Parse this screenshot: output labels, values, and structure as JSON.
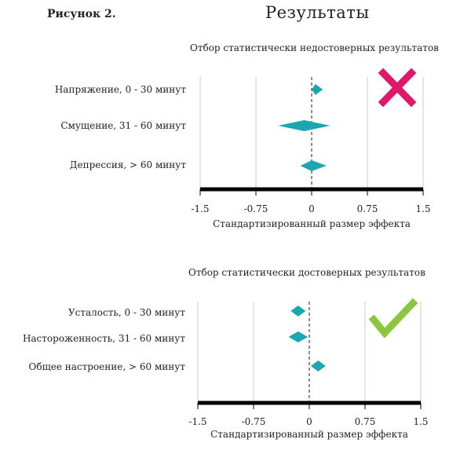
{
  "figure_label": "Рисунок 2.",
  "title": "Результаты",
  "colors": {
    "marker": "#1aa7b0",
    "axis": "#000000",
    "grid": "#cccccc",
    "cross": "#e0186c",
    "check": "#8cc63f"
  },
  "chart_data": [
    {
      "type": "forest",
      "subtitle": "Отбор статистически недостоверных результатов",
      "categories": [
        "Напряжение, 0 - 30 минут",
        "Смущение, 31 - 60 минут",
        "Депрессия, > 60 минут"
      ],
      "series": [
        {
          "estimates": [
            0.05,
            -0.1,
            0.0
          ],
          "ci_low": [
            -0.0,
            -0.45,
            -0.15
          ],
          "ci_high": [
            0.15,
            0.25,
            0.2
          ]
        }
      ],
      "xlim": [
        -1.5,
        1.5
      ],
      "xticks": [
        "-1.5",
        "-0.75",
        "0",
        "0.75",
        "1.5"
      ],
      "xlabel": "Стандартизированный размер эффекта",
      "badge": "cross-icon"
    },
    {
      "type": "forest",
      "subtitle": "Отбор статистически достоверных результатов",
      "categories": [
        "Усталость, 0 - 30 минут",
        "Настороженность, 31 - 60 минут",
        "Общее настроение, > 60 минут"
      ],
      "series": [
        {
          "estimates": [
            -0.15,
            -0.15,
            0.12
          ],
          "ci_low": [
            -0.25,
            -0.28,
            0.02
          ],
          "ci_high": [
            -0.05,
            -0.02,
            0.22
          ]
        }
      ],
      "xlim": [
        -1.5,
        1.5
      ],
      "xticks": [
        "-1.5",
        "-0.75",
        "0",
        "0.75",
        "1.5"
      ],
      "xlabel": "Стандартизированный размер эффекта",
      "badge": "check-icon"
    }
  ]
}
